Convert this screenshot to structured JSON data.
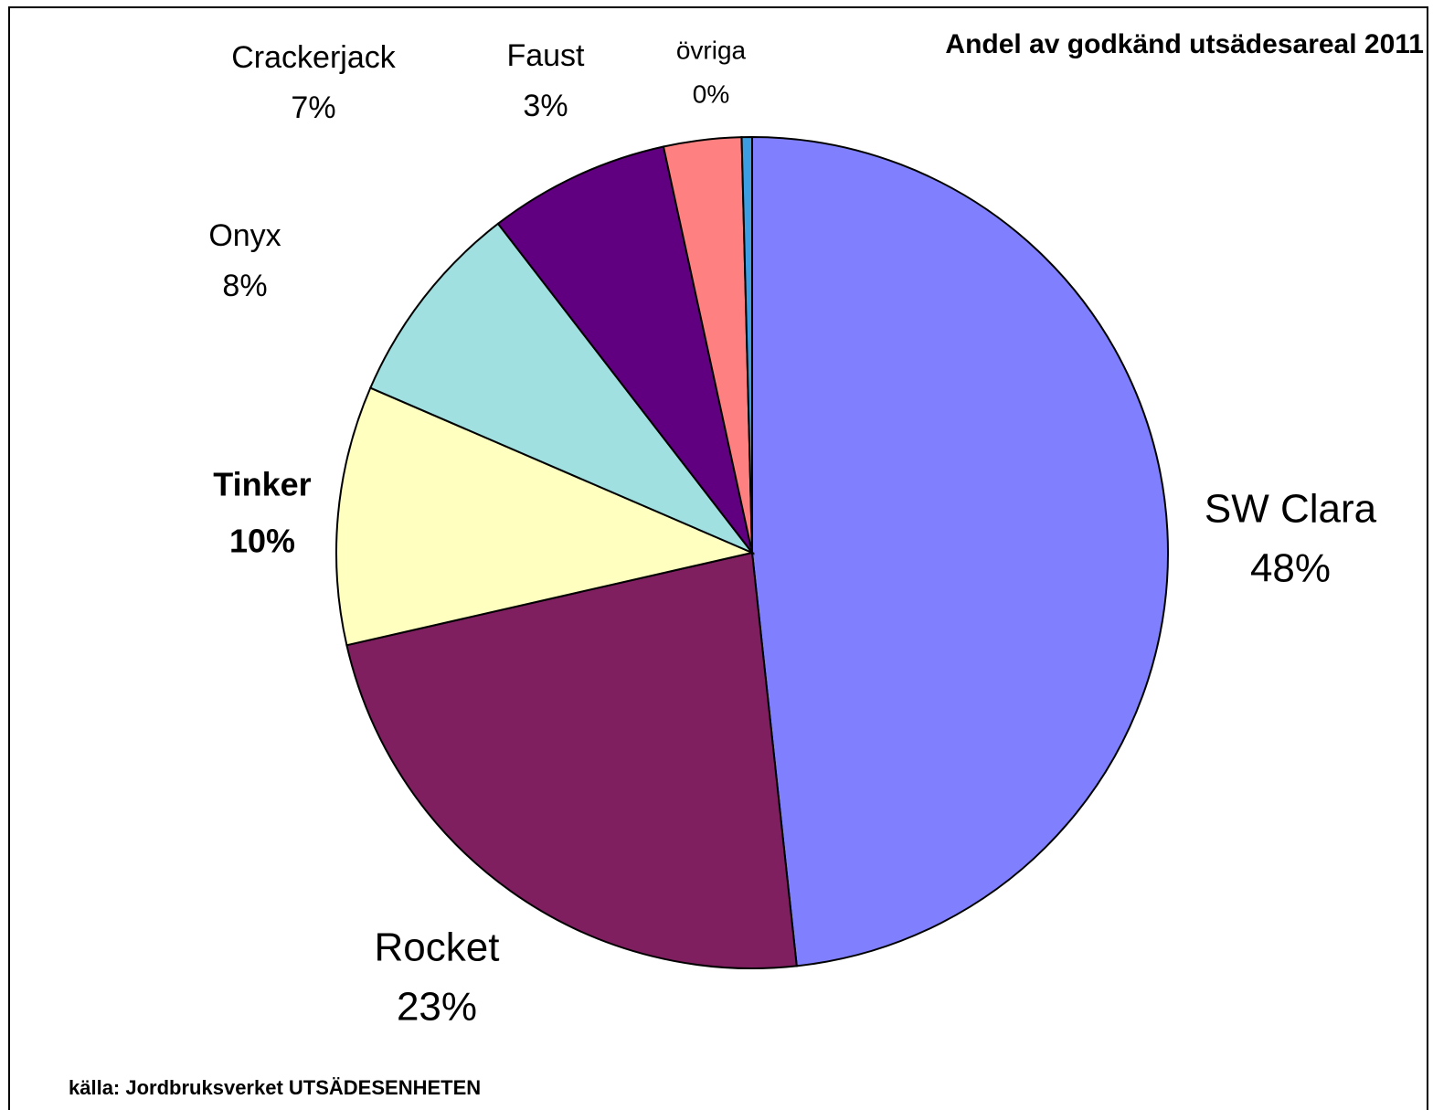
{
  "chart_data": {
    "type": "pie",
    "title": "Andel av godkänd utsädesareal 2011",
    "source": "källa: Jordbruksverket UTSÄDESENHETEN",
    "categories": [
      "SW Clara",
      "Rocket",
      "Tinker",
      "Onyx",
      "Crackerjack",
      "Faust",
      "övriga"
    ],
    "values": [
      48,
      23,
      10,
      8,
      7,
      3,
      0.4
    ],
    "value_labels": [
      "48%",
      "23%",
      "10%",
      "8%",
      "7%",
      "3%",
      "0%"
    ],
    "colors": [
      "#8080ff",
      "#7f1f5f",
      "#ffffc0",
      "#a0e0e0",
      "#600080",
      "#ff8080",
      "#3c9ee0"
    ]
  }
}
